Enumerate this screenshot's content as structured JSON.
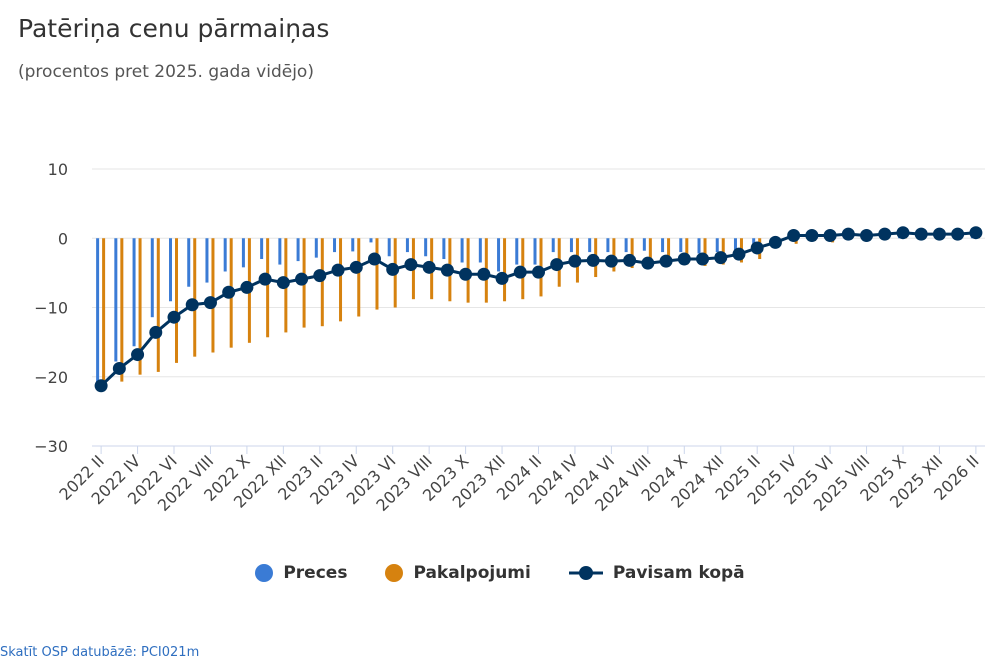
{
  "chart_data": {
    "type": "bar+line",
    "title": "Patēriņa cenu pārmaiņas",
    "subtitle": "(procentos pret 2025. gada vidējo)",
    "ylim": [
      -30,
      10
    ],
    "yticks": [
      10,
      0,
      -10,
      -20,
      -30
    ],
    "ytick_labels": [
      "10",
      "0",
      "−10",
      "−20",
      "−30"
    ],
    "categories": [
      "2022 II",
      "2022 III",
      "2022 IV",
      "2022 V",
      "2022 VI",
      "2022 VII",
      "2022 VIII",
      "2022 IX",
      "2022 X",
      "2022 XI",
      "2022 XII",
      "2023 I",
      "2023 II",
      "2023 III",
      "2023 IV",
      "2023 V",
      "2023 VI",
      "2023 VII",
      "2023 VIII",
      "2023 IX",
      "2023 X",
      "2023 XI",
      "2023 XII",
      "2024 I",
      "2024 II",
      "2024 III",
      "2024 IV",
      "2024 V",
      "2024 VI",
      "2024 VII",
      "2024 VIII",
      "2024 IX",
      "2024 X",
      "2024 XI",
      "2024 XII",
      "2025 I",
      "2025 II",
      "2025 III",
      "2025 IV",
      "2025 V",
      "2025 VI",
      "2025 VII",
      "2025 VIII",
      "2025 IX",
      "2025 X",
      "2025 XI",
      "2025 XII",
      "2026 I",
      "2026 II"
    ],
    "series": [
      {
        "name": "Preces",
        "type": "bar",
        "color": "#3a7bd5",
        "values": [
          -21.0,
          -17.8,
          -15.6,
          -11.4,
          -9.1,
          -7.0,
          -6.4,
          -4.8,
          -4.2,
          -3.0,
          -3.8,
          -3.3,
          -2.8,
          -2.0,
          -1.9,
          -0.6,
          -2.6,
          -2.0,
          -2.6,
          -3.0,
          -3.5,
          -3.5,
          -4.8,
          -3.8,
          -3.8,
          -2.0,
          -2.0,
          -2.0,
          -2.0,
          -2.0,
          -1.8,
          -2.0,
          -2.0,
          -2.2,
          -2.0,
          -1.8,
          -0.8,
          -0.3,
          0.2,
          0.3,
          0.3,
          0.5,
          0.3,
          0.4,
          0.6,
          0.5,
          0.4,
          0.5,
          0.6
        ]
      },
      {
        "name": "Pakalpojumi",
        "type": "bar",
        "color": "#d6820f",
        "values": [
          -21.5,
          -20.7,
          -19.7,
          -19.3,
          -18.0,
          -17.1,
          -16.5,
          -15.8,
          -15.1,
          -14.3,
          -13.6,
          -12.9,
          -12.7,
          -12.0,
          -11.3,
          -10.3,
          -10.0,
          -8.8,
          -8.8,
          -9.1,
          -9.3,
          -9.3,
          -9.1,
          -8.8,
          -8.4,
          -7.0,
          -6.4,
          -5.6,
          -4.8,
          -4.3,
          -4.2,
          -4.0,
          -3.8,
          -4.0,
          -3.8,
          -3.5,
          -3.0,
          -1.0,
          -0.8,
          -0.4,
          -0.6,
          0.4,
          0.3,
          0.6,
          1.0,
          0.6,
          1.3,
          0.8,
          1.0
        ]
      },
      {
        "name": "Pavisam kopā",
        "type": "line",
        "color": "#00335f",
        "values": [
          -21.3,
          -18.8,
          -16.8,
          -13.6,
          -11.4,
          -9.6,
          -9.3,
          -7.8,
          -7.1,
          -5.9,
          -6.4,
          -5.9,
          -5.4,
          -4.6,
          -4.2,
          -3.0,
          -4.5,
          -3.8,
          -4.2,
          -4.6,
          -5.2,
          -5.2,
          -5.8,
          -4.9,
          -4.9,
          -3.8,
          -3.3,
          -3.2,
          -3.3,
          -3.2,
          -3.6,
          -3.3,
          -3.0,
          -3.0,
          -2.8,
          -2.3,
          -1.4,
          -0.6,
          0.4,
          0.4,
          0.4,
          0.6,
          0.4,
          0.6,
          0.8,
          0.6,
          0.6,
          0.6,
          0.8
        ]
      }
    ],
    "legend": "bottom-center",
    "grid": true
  },
  "footer_link": "Skatīt OSP datubāzē: PCI021m"
}
